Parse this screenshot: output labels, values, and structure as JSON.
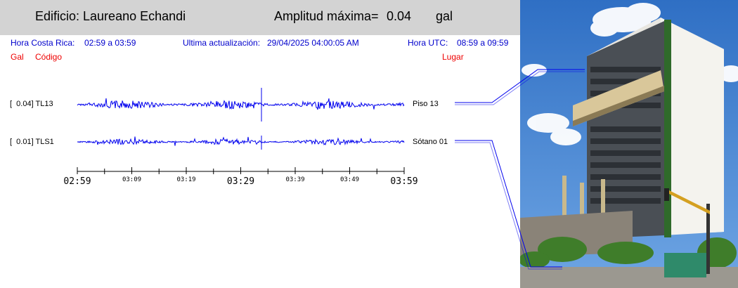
{
  "header": {
    "building_label": "Edificio: Laureano Echandi",
    "amplitude_label": "Amplitud máxima=",
    "amplitude_value": "0.04",
    "amplitude_unit": "gal"
  },
  "info": {
    "local_time_label": "Hora Costa Rica:",
    "local_time_range": "02:59 a 03:59",
    "update_label": "Ultima actualización:",
    "update_value": "29/04/2025 04:00:05 AM",
    "utc_label": "Hora UTC:",
    "utc_range": "08:59 a 09:59"
  },
  "columns": {
    "gal": "Gal",
    "code": "Código",
    "place": "Lugar"
  },
  "channels": [
    {
      "amp": "[  0.04] TL13",
      "place": "Piso 13"
    },
    {
      "amp": "[  0.01] TLS1",
      "place": "Sótano 01"
    }
  ],
  "time_axis": {
    "labels": [
      "02:59",
      "03:09",
      "03:19",
      "03:29",
      "03:39",
      "03:49",
      "03:59"
    ],
    "major": [
      true,
      false,
      false,
      true,
      false,
      false,
      true
    ]
  },
  "photo": {
    "description_icon": "building-photo",
    "colors": {
      "sky": "#3b7fd0",
      "facade": "#e8e6e0",
      "window_band": "#3a3f44",
      "trees": "#3f7d2a"
    }
  },
  "colors": {
    "header_bg": "#d3d3d3",
    "info_text": "#0000cc",
    "label_red": "#ee0000",
    "trace": "#0000ee"
  }
}
